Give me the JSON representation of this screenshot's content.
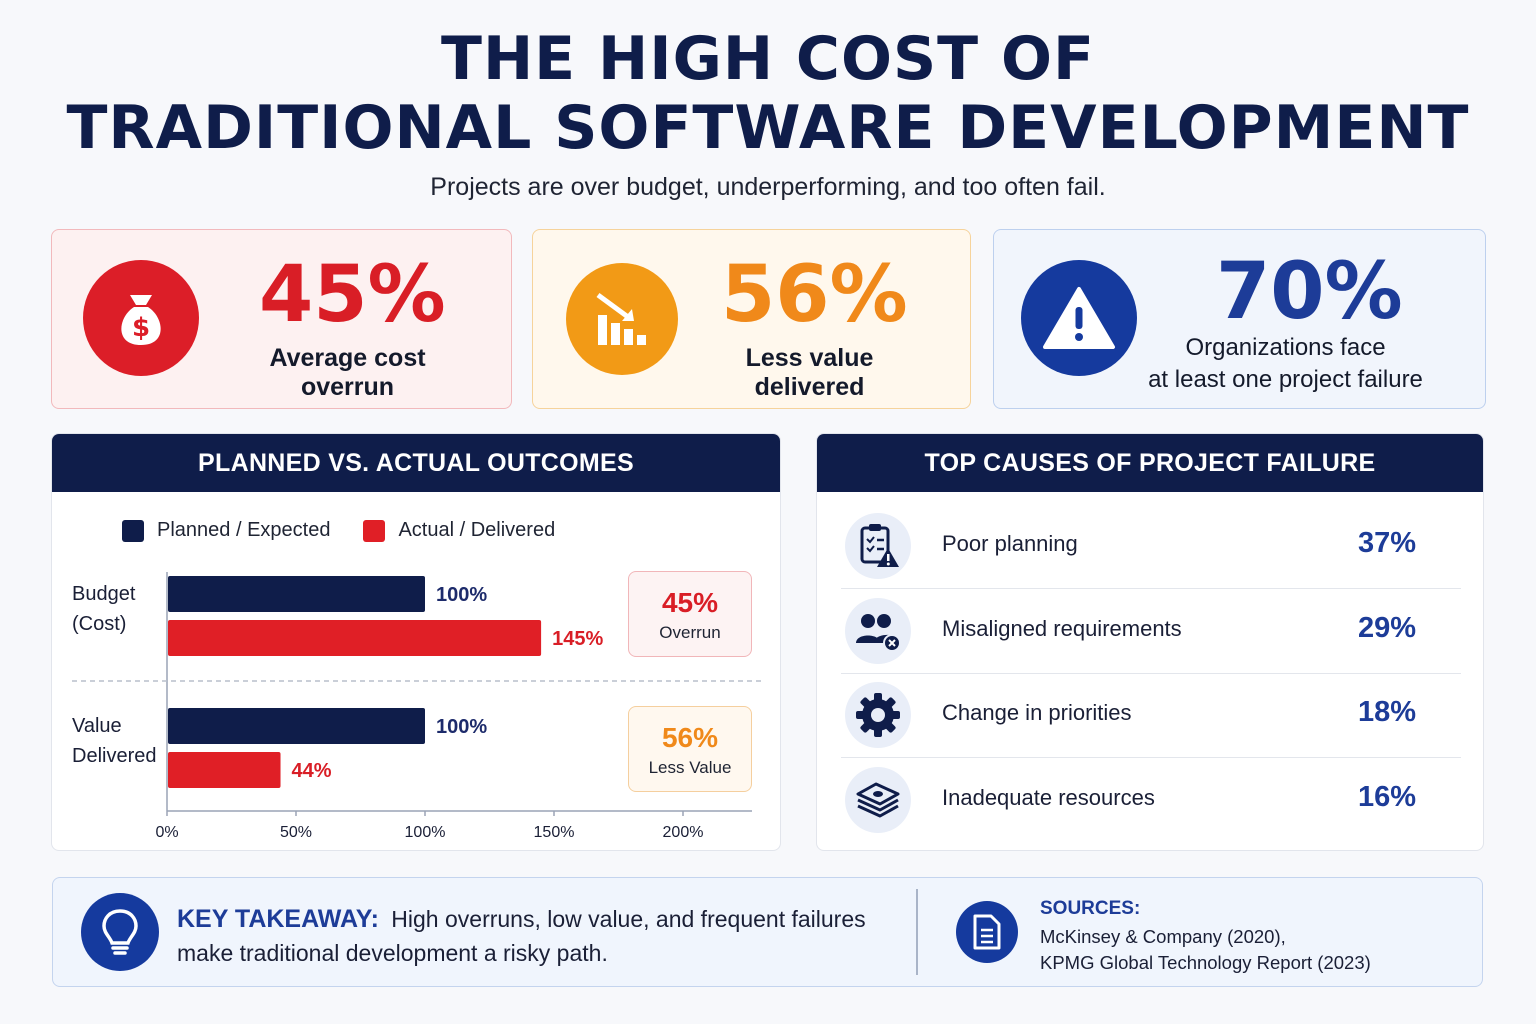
{
  "header": {
    "title_line1": "THE HIGH COST OF",
    "title_line2": "TRADITIONAL SOFTWARE DEVELOPMENT",
    "subtitle": "Projects are over budget, underperforming, and too often fail."
  },
  "stats": [
    {
      "value": "45%",
      "label": "Average cost overrun",
      "icon": "money-bag-icon",
      "color": "#dc1e28"
    },
    {
      "value": "56%",
      "label": "Less value delivered",
      "icon": "declining-chart-icon",
      "color": "#f29a16"
    },
    {
      "value": "70%",
      "label_line1": "Organizations face",
      "label_line2": "at least one project failure",
      "icon": "warning-icon",
      "color": "#153a9e"
    }
  ],
  "chart_data": {
    "type": "bar",
    "orientation": "horizontal",
    "title": "PLANNED VS. ACTUAL OUTCOMES",
    "categories": [
      "Budget (Cost)",
      "Value Delivered"
    ],
    "category_lines": [
      [
        "Budget",
        "(Cost)"
      ],
      [
        "Value",
        "Delivered"
      ]
    ],
    "series": [
      {
        "name": "Planned / Expected",
        "values": [
          100,
          100
        ],
        "labels": [
          "100%",
          "100%"
        ],
        "color": "#0f1d4a"
      },
      {
        "name": "Actual / Delivered",
        "values": [
          145,
          44
        ],
        "labels": [
          "145%",
          "44%"
        ],
        "color": "#e01f26"
      }
    ],
    "xlim": [
      0,
      225
    ],
    "xticks": [
      0,
      50,
      100,
      150,
      200
    ],
    "xtick_labels": [
      "0%",
      "50%",
      "100%",
      "150%",
      "200%"
    ],
    "legend_position": "top",
    "annotations": [
      {
        "value": "45%",
        "text": "Overrun"
      },
      {
        "value": "56%",
        "text": "Less Value"
      }
    ]
  },
  "causes": {
    "title": "TOP CAUSES OF PROJECT FAILURE",
    "items": [
      {
        "label": "Poor planning",
        "pct": "37%",
        "icon": "clipboard-warning-icon"
      },
      {
        "label": "Misaligned requirements",
        "pct": "29%",
        "icon": "people-x-icon"
      },
      {
        "label": "Change in priorities",
        "pct": "18%",
        "icon": "gear-icon"
      },
      {
        "label": "Inadequate resources",
        "pct": "16%",
        "icon": "money-stack-icon"
      }
    ]
  },
  "takeaway": {
    "title": "KEY TAKEAWAY:",
    "text_line1": "High overruns, low value, and frequent failures",
    "text_line2": "make traditional development a risky path.",
    "sources_title": "SOURCES:",
    "source_1": "McKinsey & Company (2020),",
    "source_2": "KPMG Global Technology Report (2023)"
  }
}
